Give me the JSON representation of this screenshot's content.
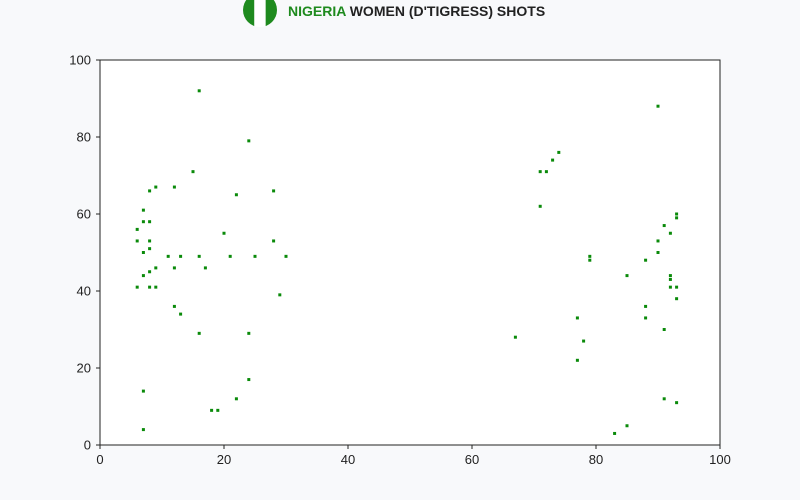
{
  "title": {
    "country": "NIGERIA",
    "rest": " WOMEN (D'TIGRESS) SHOTS",
    "country_color": "#1e8a1e",
    "rest_color": "#222222"
  },
  "flag": {
    "name": "nigeria-flag",
    "colors": [
      "#1e8a1e",
      "#ffffff",
      "#1e8a1e"
    ]
  },
  "chart_data": {
    "type": "scatter",
    "xlim": [
      0,
      100
    ],
    "ylim": [
      0,
      100
    ],
    "xticks": [
      0,
      20,
      40,
      60,
      80,
      100
    ],
    "yticks": [
      0,
      20,
      40,
      60,
      80,
      100
    ],
    "grid": false,
    "marker_color": "#0a8a0a",
    "points": [
      [
        6,
        41
      ],
      [
        6,
        53
      ],
      [
        6,
        56
      ],
      [
        7,
        61
      ],
      [
        7,
        58
      ],
      [
        7,
        50
      ],
      [
        7,
        44
      ],
      [
        7,
        14
      ],
      [
        7,
        4
      ],
      [
        8,
        66
      ],
      [
        8,
        58
      ],
      [
        8,
        53
      ],
      [
        8,
        51
      ],
      [
        8,
        45
      ],
      [
        8,
        41
      ],
      [
        9,
        67
      ],
      [
        9,
        46
      ],
      [
        9,
        41
      ],
      [
        11,
        49
      ],
      [
        12,
        67
      ],
      [
        12,
        46
      ],
      [
        12,
        36
      ],
      [
        13,
        49
      ],
      [
        13,
        34
      ],
      [
        15,
        71
      ],
      [
        16,
        92
      ],
      [
        16,
        49
      ],
      [
        16,
        29
      ],
      [
        17,
        46
      ],
      [
        18,
        9
      ],
      [
        19,
        9
      ],
      [
        20,
        55
      ],
      [
        21,
        49
      ],
      [
        22,
        65
      ],
      [
        22,
        12
      ],
      [
        24,
        79
      ],
      [
        24,
        29
      ],
      [
        24,
        17
      ],
      [
        25,
        49
      ],
      [
        28,
        66
      ],
      [
        28,
        53
      ],
      [
        29,
        39
      ],
      [
        30,
        49
      ],
      [
        67,
        28
      ],
      [
        71,
        71
      ],
      [
        71,
        62
      ],
      [
        72,
        71
      ],
      [
        73,
        74
      ],
      [
        74,
        76
      ],
      [
        77,
        33
      ],
      [
        77,
        22
      ],
      [
        78,
        27
      ],
      [
        79,
        49
      ],
      [
        79,
        48
      ],
      [
        83,
        3
      ],
      [
        85,
        44
      ],
      [
        85,
        5
      ],
      [
        88,
        48
      ],
      [
        88,
        36
      ],
      [
        88,
        33
      ],
      [
        90,
        88
      ],
      [
        90,
        53
      ],
      [
        90,
        50
      ],
      [
        91,
        57
      ],
      [
        91,
        30
      ],
      [
        91,
        12
      ],
      [
        92,
        55
      ],
      [
        92,
        44
      ],
      [
        92,
        43
      ],
      [
        92,
        41
      ],
      [
        93,
        60
      ],
      [
        93,
        59
      ],
      [
        93,
        41
      ],
      [
        93,
        38
      ],
      [
        93,
        11
      ]
    ]
  }
}
